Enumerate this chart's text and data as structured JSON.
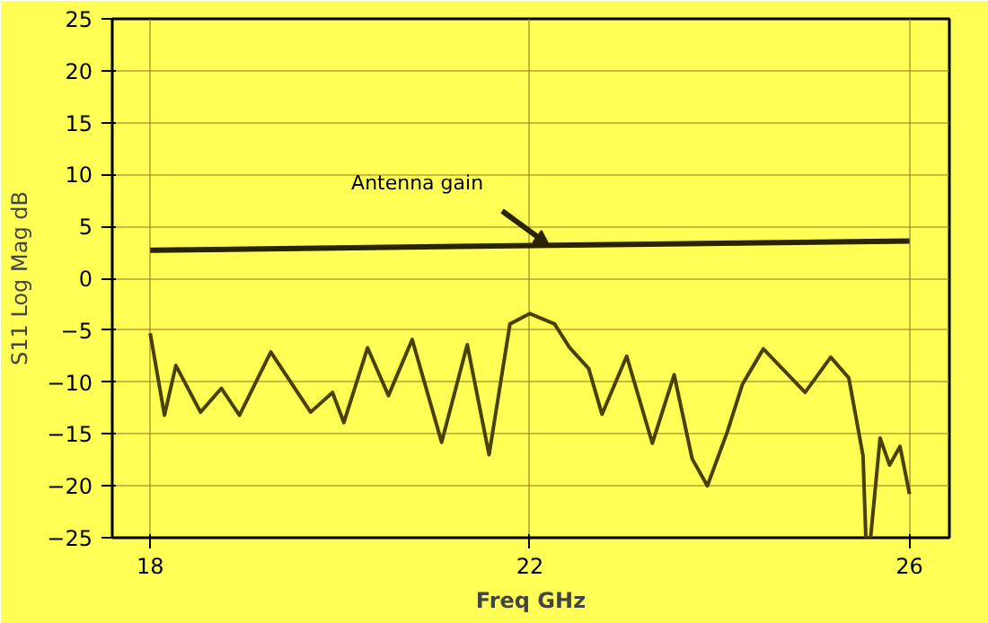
{
  "chart_data": {
    "type": "line",
    "xlabel": "Freq GHz",
    "ylabel": "S11 Log Mag dB",
    "xlim": [
      17.6,
      26.42
    ],
    "xticks": [
      18,
      22,
      26
    ],
    "ylim": [
      -25,
      25
    ],
    "yticks": [
      -25,
      -20,
      -15,
      -10,
      -5,
      0,
      5,
      10,
      15,
      20,
      25
    ],
    "grid": true,
    "line_style": "solid",
    "marker": "none",
    "series": [
      {
        "color": "#4a4000",
        "x": [
          18.0,
          18.15,
          18.27,
          18.53,
          18.75,
          18.94,
          19.27,
          19.69,
          19.92,
          20.04,
          20.29,
          20.51,
          20.76,
          21.07,
          21.34,
          21.57,
          21.79,
          22.0,
          22.26,
          22.42,
          22.62,
          22.76,
          23.02,
          23.29,
          23.52,
          23.71,
          23.87,
          24.08,
          24.24,
          24.46,
          24.9,
          25.17,
          25.36,
          25.51,
          25.54,
          25.59,
          25.69,
          25.79,
          25.9,
          26.0
        ],
        "values": [
          -5.3,
          -13.2,
          -8.4,
          -12.9,
          -10.6,
          -13.2,
          -7.1,
          -12.9,
          -11.0,
          -13.9,
          -6.7,
          -11.3,
          -5.9,
          -15.8,
          -6.4,
          -17.0,
          -4.4,
          -3.4,
          -4.4,
          -6.7,
          -8.7,
          -13.1,
          -7.5,
          -15.9,
          -9.3,
          -17.4,
          -20.0,
          -14.8,
          -10.2,
          -6.8,
          -11.0,
          -7.6,
          -9.6,
          -17.1,
          -25,
          -25,
          -15.4,
          -18.0,
          -16.2,
          -20.8
        ]
      },
      {
        "color": "#2a2400",
        "x": [
          18.0,
          26.0
        ],
        "values": [
          2.7,
          3.6
        ]
      }
    ],
    "annotations": [
      {
        "text": "Antenna gain",
        "x": 22.2,
        "y": 3.2
      }
    ]
  }
}
